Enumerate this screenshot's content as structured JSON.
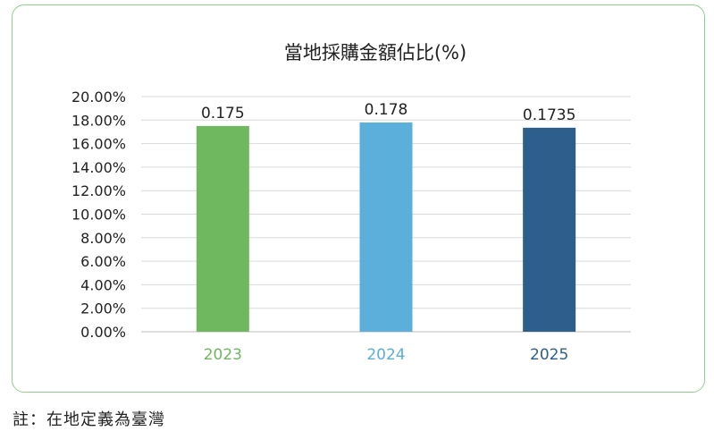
{
  "note": "註：在地定義為臺灣",
  "chart_data": {
    "type": "bar",
    "title": "當地採購金額佔比(%)",
    "xlabel": "",
    "ylabel": "",
    "categories": [
      "2023",
      "2024",
      "2025"
    ],
    "values": [
      0.175,
      0.178,
      0.1735
    ],
    "data_labels": [
      "0.175",
      "0.178",
      "0.1735"
    ],
    "yticks": [
      "0.00%",
      "2.00%",
      "4.00%",
      "6.00%",
      "8.00%",
      "10.00%",
      "12.00%",
      "14.00%",
      "16.00%",
      "18.00%",
      "20.00%"
    ],
    "ylim": [
      0,
      0.2
    ],
    "grid": true,
    "legend": "none",
    "colors": [
      "#70b860",
      "#5aafdb",
      "#2e5f8c"
    ]
  }
}
